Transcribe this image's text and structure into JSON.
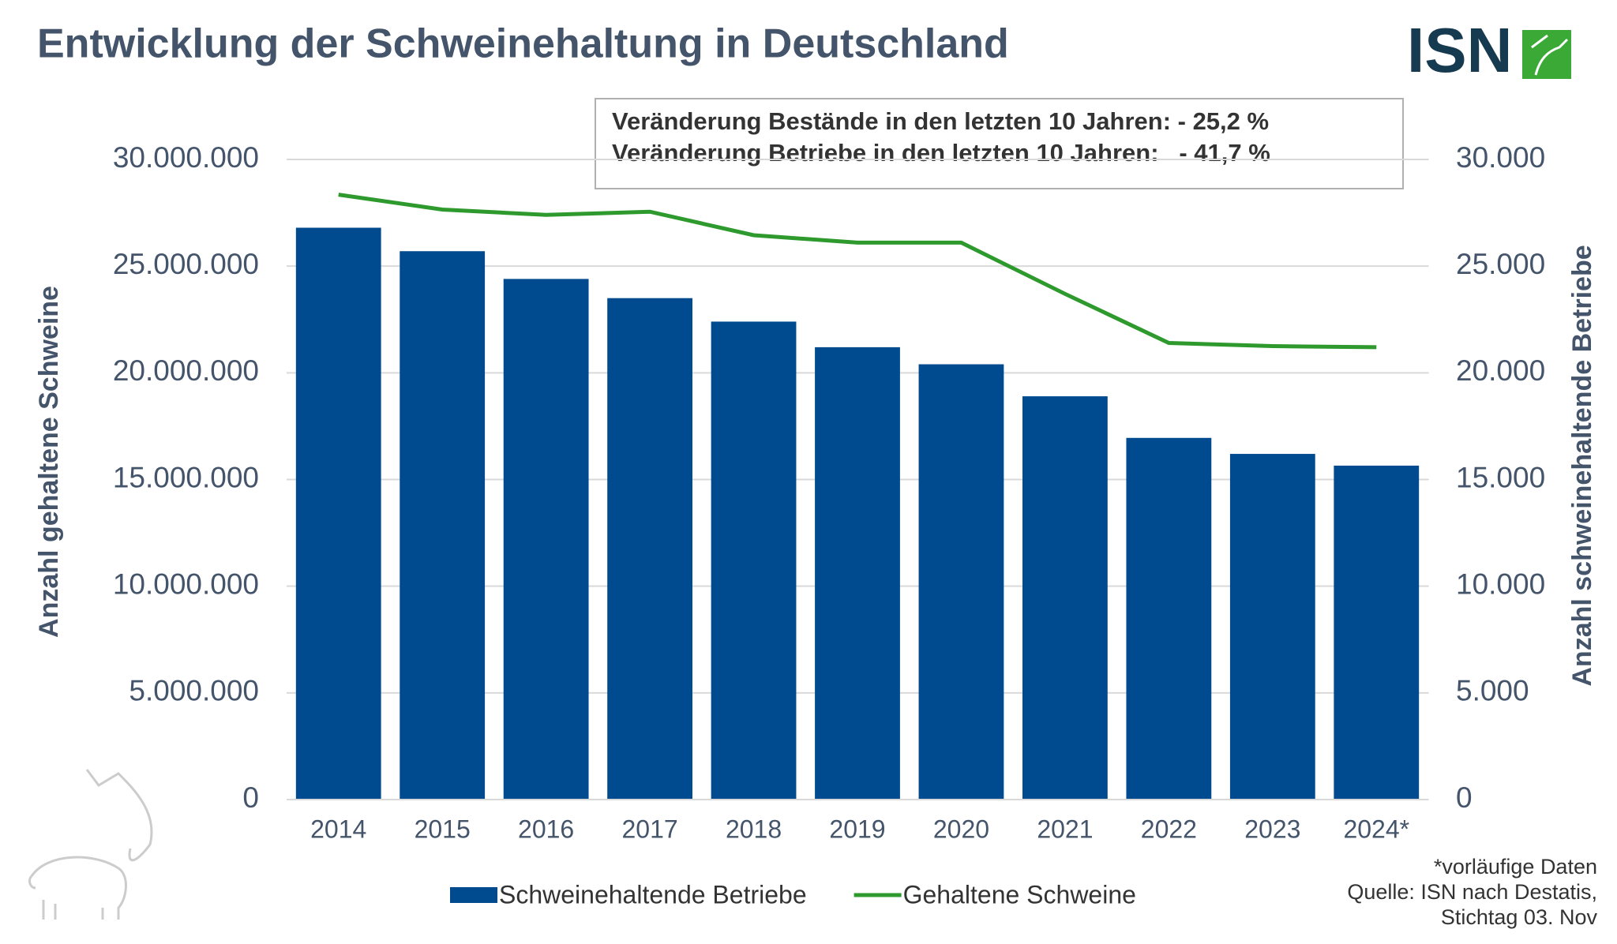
{
  "chart_data": {
    "type": "bar_line",
    "title": "Entwicklung der Schweinehaltung in Deutschland",
    "logo": "ISN",
    "annotations": [
      "Veränderung Bestände in den letzten 10 Jahren: - 25,2 %",
      "Veränderung Betriebe in den letzten 10 Jahren:   - 41,7 %"
    ],
    "footnotes": [
      "*vorläufige Daten",
      "Quelle: ISN nach Destatis,",
      "Stichtag 03. Nov"
    ],
    "y_label": "Anzahl gehaltene Schweine",
    "y2_label": "Anzahl schweinehaltende Betriebe",
    "categories": [
      "2014",
      "2015",
      "2016",
      "2017",
      "2018",
      "2019",
      "2020",
      "2021",
      "2022",
      "2023",
      "2024*"
    ],
    "series": [
      {
        "name": "Schweinehaltende Betriebe",
        "type": "bar",
        "axis": "y2",
        "color": "#004a8f",
        "values": [
          26800,
          25700,
          24400,
          23500,
          22400,
          21200,
          20400,
          18900,
          16950,
          16200,
          15650
        ]
      },
      {
        "name": "Gehaltene Schweine",
        "type": "line",
        "color": "#2e9a2e",
        "values": [
          28350000,
          27650000,
          27400000,
          27550000,
          26450000,
          26100000,
          26100000,
          23700000,
          21400000,
          21250000,
          21200000
        ]
      }
    ],
    "ylim": [
      0,
      30000000
    ],
    "yticks": [
      0,
      {
        "value": 5000000,
        "label": "5.000.000"
      },
      {
        "value": 10000000,
        "label": "10.000.000"
      },
      {
        "value": 15000000,
        "label": "15.000.000"
      },
      {
        "value": 20000000,
        "label": "20.000.000"
      },
      {
        "value": 25000000,
        "label": "25.000.000"
      },
      {
        "value": 30000000,
        "label": "30.000.000"
      }
    ],
    "y2lim": [
      0,
      30000
    ],
    "y2ticks": [
      0,
      {
        "value": 5000,
        "label": "5.000"
      },
      {
        "value": 10000,
        "label": "10.000"
      },
      {
        "value": 15000,
        "label": "15.000"
      },
      {
        "value": 20000,
        "label": "20.000"
      },
      {
        "value": 25000,
        "label": "25.000"
      },
      {
        "value": 30000,
        "label": "30.000"
      }
    ],
    "grid": true
  }
}
